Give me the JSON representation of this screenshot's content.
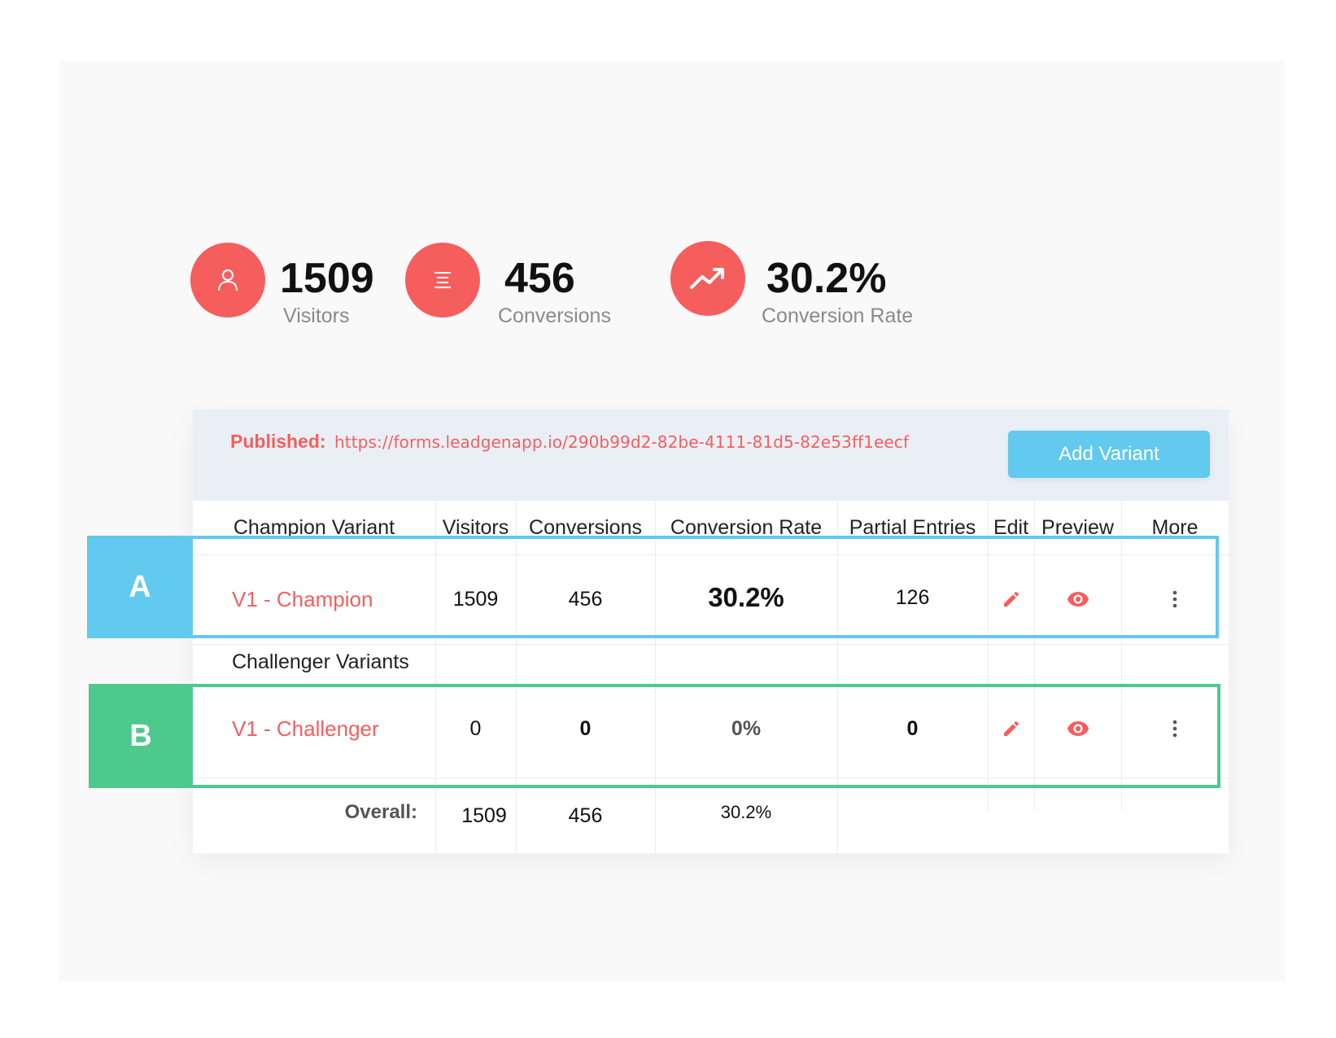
{
  "stats": [
    {
      "value": "1509",
      "label": "Visitors",
      "icon": "user-icon"
    },
    {
      "value": "456",
      "label": "Conversions",
      "icon": "list-icon"
    },
    {
      "value": "30.2%",
      "label": "Conversion Rate",
      "icon": "trending-up-icon"
    }
  ],
  "published": {
    "label": "Published:",
    "url": "https://forms.leadgenapp.io/290b99d2-82be-4111-81d5-82e53ff1eecf"
  },
  "add_variant_label": "Add Variant",
  "columns": [
    "Champion Variant",
    "Visitors",
    "Conversions",
    "Conversion Rate",
    "Partial Entries",
    "Edit",
    "Preview",
    "More"
  ],
  "champion": {
    "marker": "A",
    "name": "V1 - Champion",
    "visitors": "1509",
    "conversions": "456",
    "conversion_rate": "30.2%",
    "partial_entries": "126"
  },
  "challenger_title": "Challenger Variants",
  "challenger": {
    "marker": "B",
    "name": "V1 - Challenger",
    "visitors": "0",
    "conversions": "0",
    "conversion_rate": "0%",
    "partial_entries": "0"
  },
  "overall": {
    "label": "Overall:",
    "visitors": "1509",
    "conversions": "456",
    "conversion_rate": "30.2%"
  },
  "colors": {
    "accent": "#f65e5e",
    "button": "#62c9ef",
    "marker_a": "#62c9ef",
    "marker_b": "#4ec98e"
  },
  "icons": {
    "edit": "pencil-icon",
    "preview": "eye-icon",
    "more": "more-vertical-icon"
  }
}
